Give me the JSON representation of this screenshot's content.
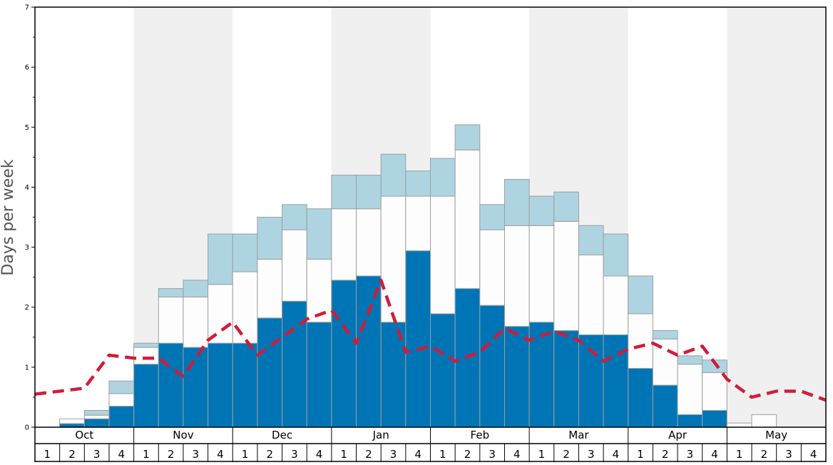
{
  "chart_data": {
    "type": "bar",
    "ylabel": "Days per week",
    "ylim": [
      0,
      7
    ],
    "y_ticks": [
      "0",
      "1",
      "2",
      "3",
      "4",
      "5",
      "6",
      "7"
    ],
    "months": [
      "Oct",
      "Nov",
      "Dec",
      "Jan",
      "Feb",
      "Mar",
      "Apr",
      "May"
    ],
    "week_labels": [
      "1",
      "2",
      "3",
      "4"
    ],
    "stacked": true,
    "colors": {
      "dark": "#0075b5",
      "white": "#fdfdfd",
      "light": "#aed4e1",
      "line": "#d01c3a",
      "shade": "#f0f0f1",
      "bar_edge": "#9e9e9e"
    },
    "series": [
      {
        "values": [
          0,
          0.06,
          0.14,
          0.35,
          1.05,
          1.4,
          1.33,
          1.4,
          1.4,
          1.82,
          2.1,
          1.75,
          2.45,
          2.52,
          1.75,
          2.94,
          1.89,
          2.31,
          2.03,
          1.68,
          1.75,
          1.61,
          1.54,
          1.54,
          0.98,
          0.7,
          0.21,
          0.28,
          0,
          0,
          0,
          0
        ]
      },
      {
        "values": [
          0,
          0.08,
          0.06,
          0.21,
          0.28,
          0.77,
          0.84,
          0.98,
          1.19,
          0.98,
          1.19,
          1.05,
          1.19,
          1.12,
          2.1,
          0.91,
          1.96,
          2.31,
          1.26,
          1.68,
          1.61,
          1.82,
          1.33,
          0.98,
          0.91,
          0.77,
          0.84,
          0.63,
          0.07,
          0.21,
          0,
          0
        ]
      },
      {
        "values": [
          0,
          0,
          0.08,
          0.21,
          0.07,
          0.14,
          0.28,
          0.84,
          0.63,
          0.7,
          0.42,
          0.84,
          0.56,
          0.56,
          0.7,
          0.42,
          0.63,
          0.42,
          0.42,
          0.77,
          0.49,
          0.49,
          0.49,
          0.7,
          0.63,
          0.14,
          0.14,
          0.21,
          0,
          0,
          0,
          0
        ]
      },
      {
        "type": "line",
        "style": "dashed",
        "values": [
          0.55,
          0.6,
          0.65,
          1.2,
          1.15,
          1.15,
          0.85,
          1.45,
          1.75,
          1.2,
          1.5,
          1.8,
          1.95,
          1.4,
          2.45,
          1.25,
          1.35,
          1.1,
          1.25,
          1.65,
          1.45,
          1.6,
          1.45,
          1.1,
          1.3,
          1.4,
          1.2,
          1.35,
          0.8,
          0.5,
          0.6,
          0.6,
          0.45
        ]
      }
    ]
  }
}
